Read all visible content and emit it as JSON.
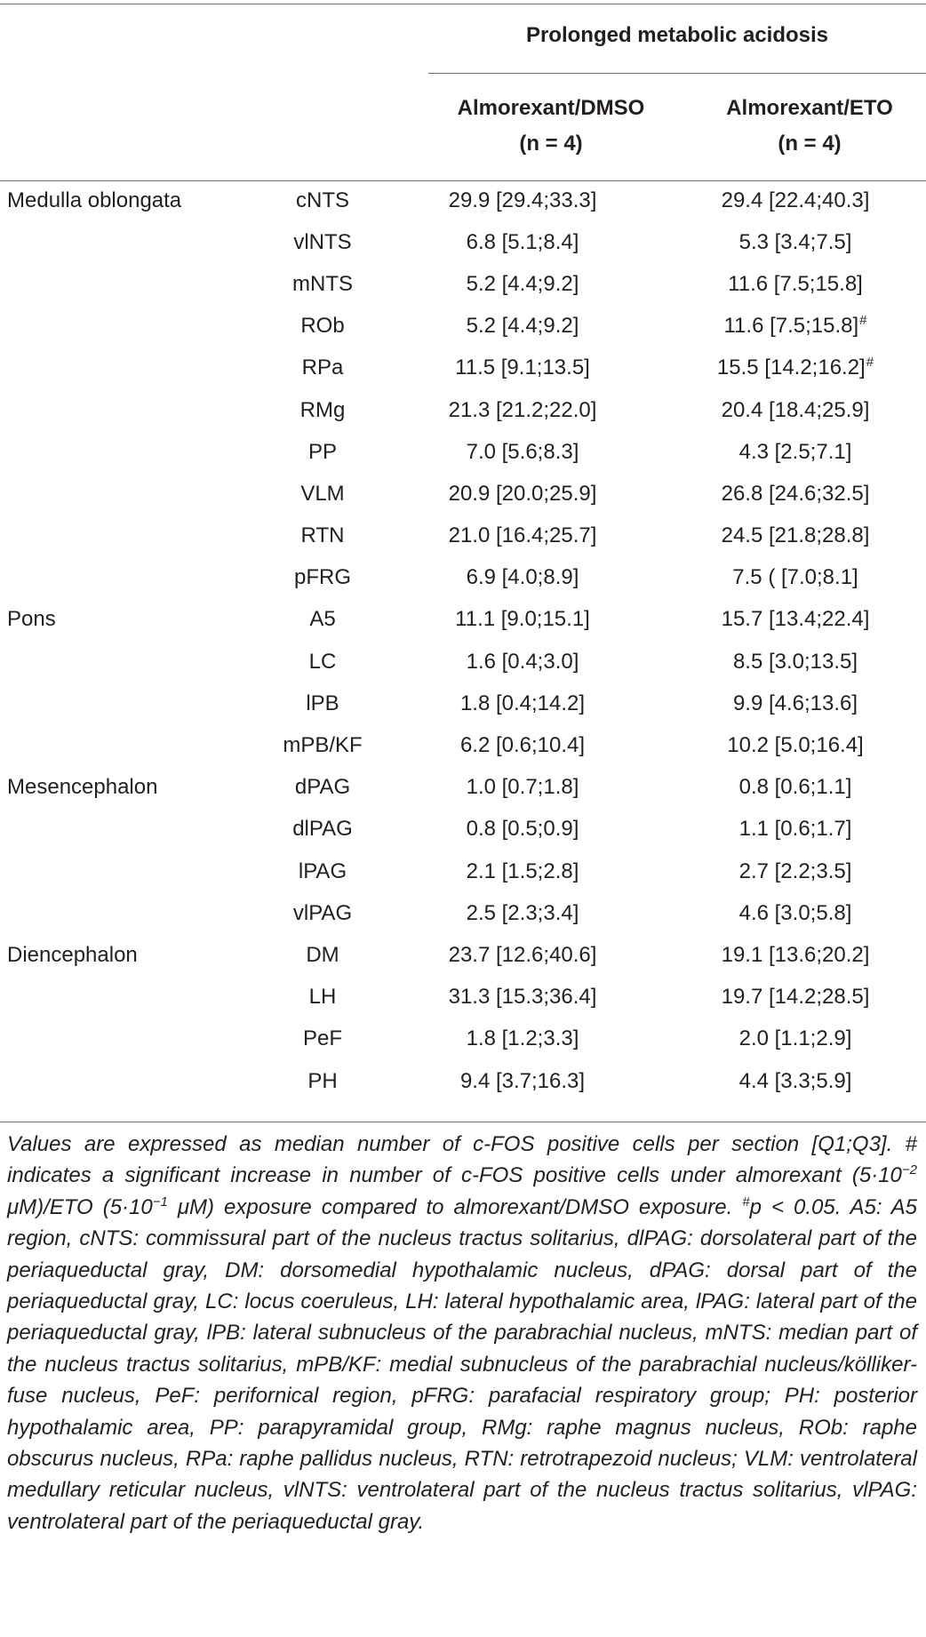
{
  "header": {
    "group_title": "Prolonged metabolic acidosis",
    "col1_line1": "Almorexant/DMSO",
    "col1_line2": "(n = 4)",
    "col2_line1": "Almorexant/ETO",
    "col2_line2": "(n = 4)"
  },
  "rows": [
    {
      "region": "Medulla oblongata",
      "sub": "cNTS",
      "dmso": "29.9 [29.4;33.3]",
      "eto": "29.4 [22.4;40.3]",
      "mark": ""
    },
    {
      "region": "",
      "sub": "vlNTS",
      "dmso": "6.8 [5.1;8.4]",
      "eto": "5.3 [3.4;7.5]",
      "mark": ""
    },
    {
      "region": "",
      "sub": "mNTS",
      "dmso": "5.2 [4.4;9.2]",
      "eto": "11.6 [7.5;15.8]",
      "mark": ""
    },
    {
      "region": "",
      "sub": "ROb",
      "dmso": "5.2 [4.4;9.2]",
      "eto": "11.6 [7.5;15.8]",
      "mark": "#"
    },
    {
      "region": "",
      "sub": "RPa",
      "dmso": "11.5 [9.1;13.5]",
      "eto": "15.5 [14.2;16.2]",
      "mark": "#"
    },
    {
      "region": "",
      "sub": "RMg",
      "dmso": "21.3 [21.2;22.0]",
      "eto": "20.4 [18.4;25.9]",
      "mark": ""
    },
    {
      "region": "",
      "sub": "PP",
      "dmso": "7.0 [5.6;8.3]",
      "eto": "4.3 [2.5;7.1]",
      "mark": ""
    },
    {
      "region": "",
      "sub": "VLM",
      "dmso": "20.9 [20.0;25.9]",
      "eto": "26.8 [24.6;32.5]",
      "mark": ""
    },
    {
      "region": "",
      "sub": "RTN",
      "dmso": "21.0 [16.4;25.7]",
      "eto": "24.5 [21.8;28.8]",
      "mark": ""
    },
    {
      "region": "",
      "sub": "pFRG",
      "dmso": "6.9 [4.0;8.9]",
      "eto": "7.5 ( [7.0;8.1]",
      "mark": ""
    },
    {
      "region": "Pons",
      "sub": "A5",
      "dmso": "11.1 [9.0;15.1]",
      "eto": "15.7 [13.4;22.4]",
      "mark": ""
    },
    {
      "region": "",
      "sub": "LC",
      "dmso": "1.6 [0.4;3.0]",
      "eto": "8.5 [3.0;13.5]",
      "mark": ""
    },
    {
      "region": "",
      "sub": "lPB",
      "dmso": "1.8 [0.4;14.2]",
      "eto": "9.9 [4.6;13.6]",
      "mark": ""
    },
    {
      "region": "",
      "sub": "mPB/KF",
      "dmso": "6.2 [0.6;10.4]",
      "eto": "10.2 [5.0;16.4]",
      "mark": ""
    },
    {
      "region": "Mesencephalon",
      "sub": "dPAG",
      "dmso": "1.0 [0.7;1.8]",
      "eto": "0.8 [0.6;1.1]",
      "mark": ""
    },
    {
      "region": "",
      "sub": "dlPAG",
      "dmso": "0.8 [0.5;0.9]",
      "eto": "1.1 [0.6;1.7]",
      "mark": ""
    },
    {
      "region": "",
      "sub": "lPAG",
      "dmso": "2.1 [1.5;2.8]",
      "eto": "2.7 [2.2;3.5]",
      "mark": ""
    },
    {
      "region": "",
      "sub": "vlPAG",
      "dmso": "2.5 [2.3;3.4]",
      "eto": "4.6 [3.0;5.8]",
      "mark": ""
    },
    {
      "region": "Diencephalon",
      "sub": "DM",
      "dmso": "23.7 [12.6;40.6]",
      "eto": "19.1 [13.6;20.2]",
      "mark": ""
    },
    {
      "region": "",
      "sub": "LH",
      "dmso": "31.3 [15.3;36.4]",
      "eto": "19.7 [14.2;28.5]",
      "mark": ""
    },
    {
      "region": "",
      "sub": "PeF",
      "dmso": "1.8 [1.2;3.3]",
      "eto": "2.0 [1.1;2.9]",
      "mark": ""
    },
    {
      "region": "",
      "sub": "PH",
      "dmso": "9.4 [3.7;16.3]",
      "eto": "4.4 [3.3;5.9]",
      "mark": ""
    }
  ],
  "footnote": {
    "part1": "Values are expressed as median number of c-FOS positive cells per section [Q1;Q3]. # indicates a significant increase in number of c-FOS positive cells under almorexant (5·10",
    "exp1": "−2",
    "part2": " μM)/ETO (5·10",
    "exp2": "−1",
    "part3": " μM) exposure compared to almorexant/DMSO exposure. ",
    "hash": "#",
    "part4": "p < 0.05. A5: A5 region, cNTS: commissural part of the nucleus tractus solitarius, dlPAG: dorsolateral part of the periaqueductal gray, DM: dorsomedial hypothalamic nucleus, dPAG: dorsal part of the periaqueductal gray, LC: locus coeruleus, LH: lateral hypothalamic area, lPAG: lateral part of the periaqueductal gray, lPB: lateral subnucleus of the parabrachial nucleus, mNTS: median part of the nucleus tractus solitarius, mPB/KF: medial subnucleus of the parabrachial nucleus/kölliker-fuse nucleus, PeF: perifornical region, pFRG: parafacial respiratory group; PH: posterior hypothalamic area, PP: parapyramidal group, RMg: raphe magnus nucleus, ROb: raphe obscurus nucleus, RPa: raphe pallidus nucleus, RTN: retrotrapezoid nucleus; VLM: ventrolateral medullary reticular nucleus, vlNTS: ventrolateral part of the nucleus tractus solitarius, vlPAG: ventrolateral part of the periaqueductal gray."
  }
}
